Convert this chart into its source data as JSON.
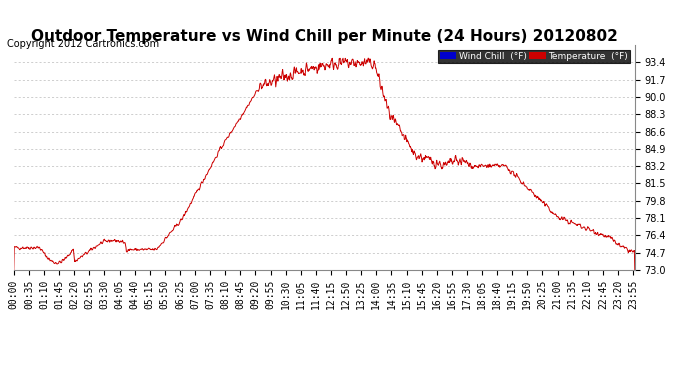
{
  "title": "Outdoor Temperature vs Wind Chill per Minute (24 Hours) 20120802",
  "copyright": "Copyright 2012 Cartronics.com",
  "ylim": [
    73.0,
    95.1
  ],
  "yticks": [
    73.0,
    74.7,
    76.4,
    78.1,
    79.8,
    81.5,
    83.2,
    84.9,
    86.6,
    88.3,
    90.0,
    91.7,
    93.4
  ],
  "background_color": "#ffffff",
  "grid_color": "#bbbbbb",
  "line_color": "#cc0000",
  "legend_wind_chill_bg": "#0000cc",
  "legend_temp_bg": "#cc0000",
  "legend_wind_chill_text": "Wind Chill  (°F)",
  "legend_temp_text": "Temperature  (°F)",
  "title_fontsize": 11,
  "copyright_fontsize": 7,
  "tick_fontsize": 7,
  "num_points": 1440
}
